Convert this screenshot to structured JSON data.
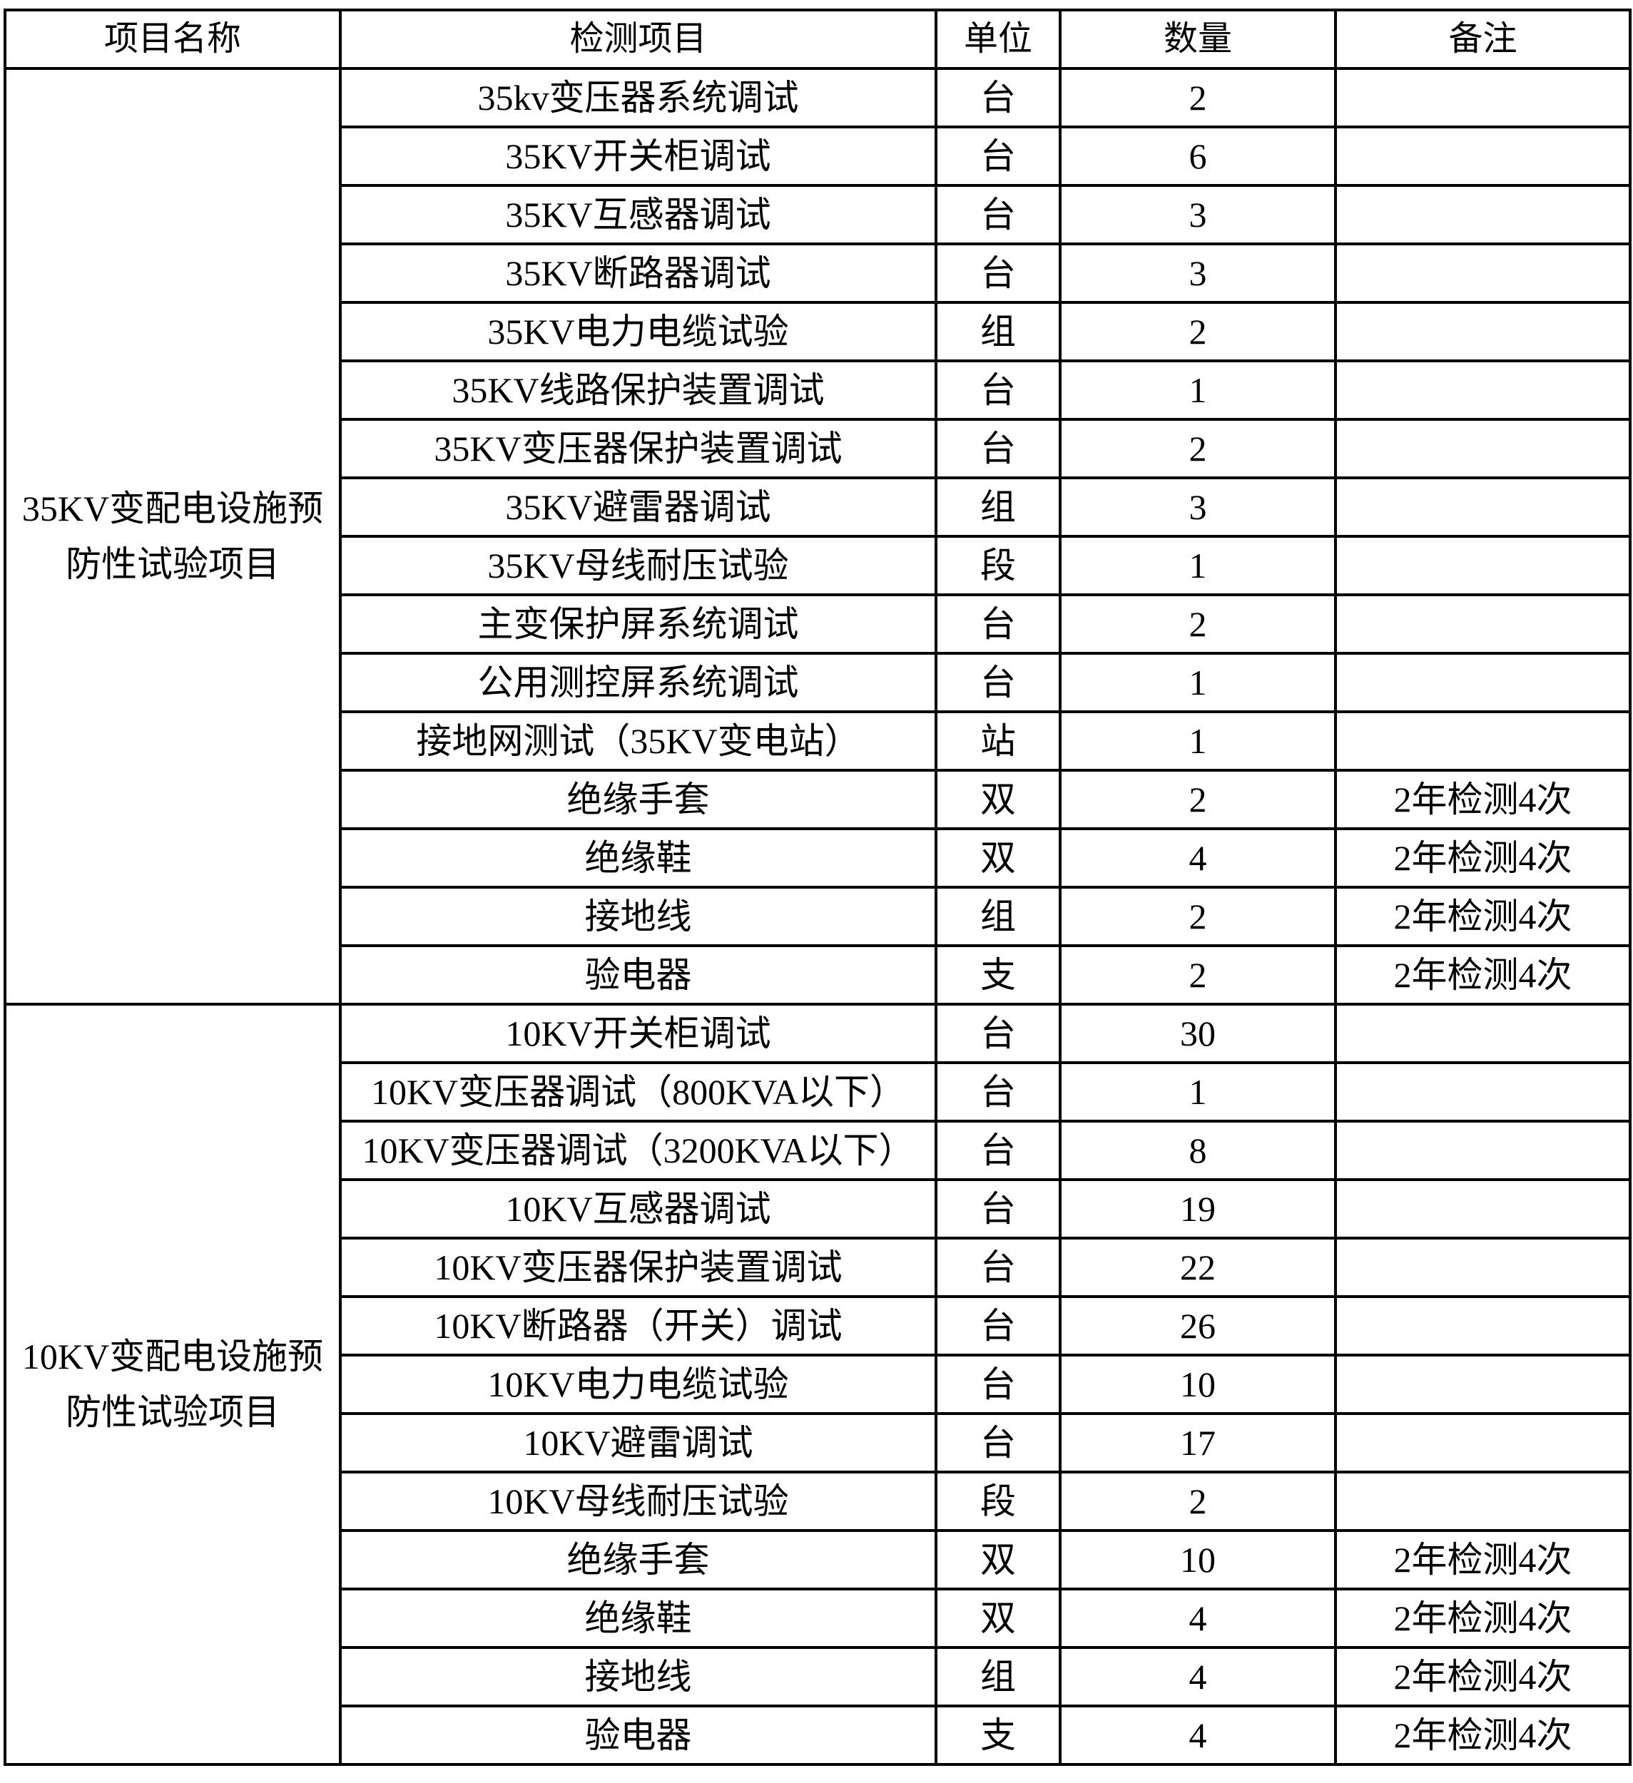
{
  "headers": [
    "项目名称",
    "检测项目",
    "单位",
    "数量",
    "备注"
  ],
  "groups": [
    {
      "name": "35KV变配电设施预防性试验项目",
      "rows": [
        {
          "item": "35kv变压器系统调试",
          "unit": "台",
          "qty": "2",
          "note": ""
        },
        {
          "item": "35KV开关柜调试",
          "unit": "台",
          "qty": "6",
          "note": ""
        },
        {
          "item": "35KV互感器调试",
          "unit": "台",
          "qty": "3",
          "note": ""
        },
        {
          "item": "35KV断路器调试",
          "unit": "台",
          "qty": "3",
          "note": ""
        },
        {
          "item": "35KV电力电缆试验",
          "unit": "组",
          "qty": "2",
          "note": ""
        },
        {
          "item": "35KV线路保护装置调试",
          "unit": "台",
          "qty": "1",
          "note": ""
        },
        {
          "item": "35KV变压器保护装置调试",
          "unit": "台",
          "qty": "2",
          "note": ""
        },
        {
          "item": "35KV避雷器调试",
          "unit": "组",
          "qty": "3",
          "note": ""
        },
        {
          "item": "35KV母线耐压试验",
          "unit": "段",
          "qty": "1",
          "note": ""
        },
        {
          "item": "主变保护屏系统调试",
          "unit": "台",
          "qty": "2",
          "note": ""
        },
        {
          "item": "公用测控屏系统调试",
          "unit": "台",
          "qty": "1",
          "note": ""
        },
        {
          "item": "接地网测试（35KV变电站）",
          "unit": "站",
          "qty": "1",
          "note": ""
        },
        {
          "item": "绝缘手套",
          "unit": "双",
          "qty": "2",
          "note": "2年检测4次"
        },
        {
          "item": "绝缘鞋",
          "unit": "双",
          "qty": "4",
          "note": "2年检测4次"
        },
        {
          "item": "接地线",
          "unit": "组",
          "qty": "2",
          "note": "2年检测4次"
        },
        {
          "item": "验电器",
          "unit": "支",
          "qty": "2",
          "note": "2年检测4次"
        }
      ]
    },
    {
      "name": "10KV变配电设施预防性试验项目",
      "rows": [
        {
          "item": "10KV开关柜调试",
          "unit": "台",
          "qty": "30",
          "note": ""
        },
        {
          "item": "10KV变压器调试（800KVA以下）",
          "unit": "台",
          "qty": "1",
          "note": ""
        },
        {
          "item": "10KV变压器调试（3200KVA以下）",
          "unit": "台",
          "qty": "8",
          "note": ""
        },
        {
          "item": "10KV互感器调试",
          "unit": "台",
          "qty": "19",
          "note": ""
        },
        {
          "item": "10KV变压器保护装置调试",
          "unit": "台",
          "qty": "22",
          "note": ""
        },
        {
          "item": "10KV断路器（开关）调试",
          "unit": "台",
          "qty": "26",
          "note": ""
        },
        {
          "item": "10KV电力电缆试验",
          "unit": "台",
          "qty": "10",
          "note": ""
        },
        {
          "item": "10KV避雷调试",
          "unit": "台",
          "qty": "17",
          "note": ""
        },
        {
          "item": "10KV母线耐压试验",
          "unit": "段",
          "qty": "2",
          "note": ""
        },
        {
          "item": "绝缘手套",
          "unit": "双",
          "qty": "10",
          "note": "2年检测4次"
        },
        {
          "item": "绝缘鞋",
          "unit": "双",
          "qty": "4",
          "note": "2年检测4次"
        },
        {
          "item": "接地线",
          "unit": "组",
          "qty": "4",
          "note": "2年检测4次"
        },
        {
          "item": "验电器",
          "unit": "支",
          "qty": "4",
          "note": "2年检测4次"
        }
      ]
    }
  ]
}
